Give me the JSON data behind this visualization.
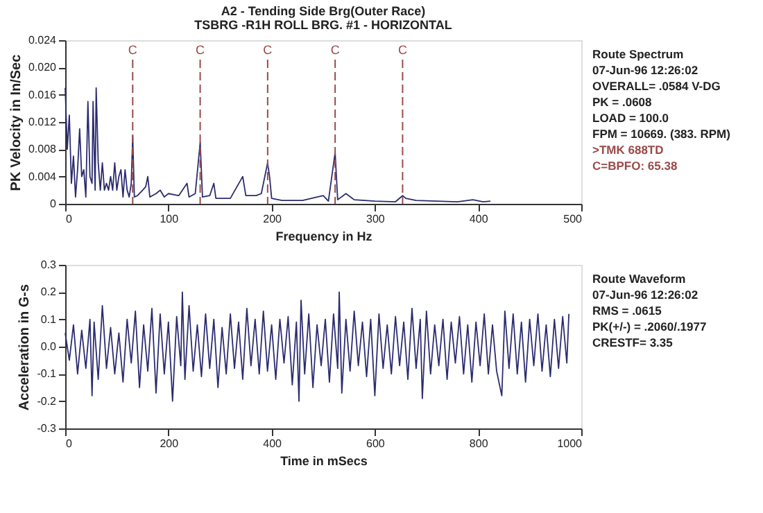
{
  "chart_data": [
    {
      "type": "line",
      "title": "A2  - Tending Side Brg(Outer Race)",
      "subtitle": "TSBRG     -R1H   ROLL BRG. #1 - HORIZONTAL",
      "xlabel": "Frequency in Hz",
      "ylabel": "PK Velocity in In/Sec",
      "xlim": [
        0,
        500
      ],
      "xticks": [
        0,
        100,
        200,
        300,
        400,
        500
      ],
      "ylim": [
        0,
        0.024
      ],
      "yticks": [
        0,
        0.004,
        0.008,
        0.012,
        0.016,
        {
          "value": 0.02,
          "label": "0.020"
        },
        0.024
      ],
      "grid": false,
      "x": [
        0,
        2,
        4,
        6,
        8,
        10,
        12,
        14,
        16,
        18,
        20,
        22,
        24,
        26,
        27,
        29,
        30,
        32,
        34,
        36,
        38,
        40,
        42,
        44,
        46,
        48,
        50,
        52,
        54,
        56,
        58,
        60,
        62,
        64,
        65.4,
        67,
        70,
        75,
        78,
        80,
        82,
        88,
        92,
        96,
        100,
        110,
        118,
        120,
        126,
        130.8,
        133,
        140,
        144,
        146,
        160,
        172,
        175,
        185,
        190,
        196.1,
        198,
        200,
        210,
        230,
        250,
        255,
        261.5,
        264,
        272,
        280,
        300,
        320,
        326.9,
        330,
        340,
        360,
        380,
        395,
        405,
        412
      ],
      "series": [
        {
          "color": "#2b2b70",
          "values": [
            0.017,
            0.008,
            0.013,
            0.003,
            0.007,
            0.001,
            0.005,
            0.011,
            0.004,
            0.005,
            0.001,
            0.015,
            0.004,
            0.003,
            0.015,
            0.002,
            0.017,
            0.006,
            0.002,
            0.006,
            0.002,
            0.003,
            0.002,
            0.004,
            0.002,
            0.006,
            0.002,
            0.004,
            0.005,
            0.001,
            0.005,
            0.002,
            0.001,
            0.003,
            0.01,
            0.001,
            0.0012,
            0.002,
            0.0025,
            0.004,
            0.001,
            0.0015,
            0.002,
            0.001,
            0.0015,
            0.0012,
            0.003,
            0.001,
            0.0015,
            0.009,
            0.001,
            0.0012,
            0.003,
            0.0008,
            0.0008,
            0.004,
            0.0012,
            0.0012,
            0.0015,
            0.006,
            0.004,
            0.0008,
            0.0005,
            0.0005,
            0.0012,
            0.0004,
            0.0075,
            0.0006,
            0.0015,
            0.0006,
            0.0004,
            0.0003,
            0.0012,
            0.0008,
            0.0005,
            0.0004,
            0.0003,
            0.0006,
            0.0003,
            0.0004
          ]
        }
      ],
      "ref_lines": [
        {
          "axis": "x",
          "value": 65.38,
          "label": "C",
          "color": "#9a4a4a",
          "line_style": "dashed"
        },
        {
          "axis": "x",
          "value": 130.76,
          "label": "C",
          "color": "#9a4a4a",
          "line_style": "dashed"
        },
        {
          "axis": "x",
          "value": 196.14,
          "label": "C",
          "color": "#9a4a4a",
          "line_style": "dashed"
        },
        {
          "axis": "x",
          "value": 261.52,
          "label": "C",
          "color": "#9a4a4a",
          "line_style": "dashed"
        },
        {
          "axis": "x",
          "value": 326.9,
          "label": "C",
          "color": "#9a4a4a",
          "line_style": "dashed"
        }
      ],
      "annotations": [
        "Route Spectrum",
        " 07-Jun-96  12:26:02",
        "OVERALL= .0584 V-DG",
        " PK  =  .0608",
        " LOAD = 100.0",
        " FPM = 10669. (383. RPM)",
        ">TMK 688TD",
        "C=BPFO: 65.38"
      ]
    },
    {
      "type": "line",
      "xlabel": "Time in mSecs",
      "ylabel": "Acceleration in G-s",
      "xlim": [
        0,
        1000
      ],
      "xticks": [
        0,
        200,
        400,
        600,
        800,
        {
          "value": 1000,
          "label": "1000"
        }
      ],
      "ylim": [
        -0.3,
        0.3
      ],
      "yticks": [
        {
          "value": -0.3,
          "label": "-0.3"
        },
        {
          "value": -0.2,
          "label": "-0.2"
        },
        {
          "value": -0.1,
          "label": "-0.1"
        },
        {
          "value": 0,
          "label": "0.0"
        },
        {
          "value": 0.1,
          "label": "0.1"
        },
        {
          "value": 0.2,
          "label": "0.2"
        },
        {
          "value": 0.3,
          "label": "0.3"
        }
      ],
      "grid": false,
      "x": [
        0,
        8,
        16,
        24,
        32,
        40,
        48,
        52,
        56,
        64,
        72,
        80,
        88,
        96,
        104,
        112,
        120,
        128,
        136,
        144,
        152,
        160,
        168,
        176,
        184,
        192,
        200,
        208,
        216,
        224,
        227,
        232,
        240,
        248,
        256,
        264,
        272,
        280,
        288,
        296,
        304,
        312,
        320,
        328,
        336,
        344,
        352,
        360,
        368,
        376,
        384,
        392,
        400,
        408,
        416,
        424,
        432,
        440,
        448,
        453,
        457,
        464,
        472,
        480,
        488,
        496,
        504,
        512,
        520,
        528,
        531,
        536,
        544,
        552,
        560,
        568,
        576,
        584,
        592,
        600,
        608,
        616,
        624,
        632,
        640,
        648,
        656,
        664,
        672,
        680,
        688,
        692,
        700,
        708,
        716,
        724,
        732,
        740,
        748,
        756,
        764,
        772,
        780,
        788,
        796,
        804,
        812,
        820,
        828,
        836,
        846,
        852,
        860,
        868,
        876,
        884,
        892,
        900,
        908,
        916,
        924,
        932,
        940,
        948,
        956,
        964,
        972,
        976
      ],
      "series": [
        {
          "color": "#2b2b70",
          "values": [
            0.05,
            -0.05,
            0.08,
            -0.1,
            0.06,
            -0.08,
            0.1,
            -0.18,
            0.09,
            -0.12,
            0.15,
            -0.08,
            0.07,
            -0.1,
            0.05,
            -0.13,
            0.1,
            -0.06,
            0.13,
            -0.15,
            0.08,
            -0.09,
            0.14,
            -0.17,
            0.12,
            -0.1,
            0.09,
            -0.2,
            0.11,
            -0.07,
            0.2,
            -0.12,
            0.15,
            -0.09,
            0.08,
            -0.11,
            0.12,
            -0.08,
            0.1,
            -0.15,
            0.07,
            -0.1,
            0.12,
            -0.08,
            0.09,
            -0.12,
            0.14,
            -0.07,
            0.1,
            -0.1,
            0.13,
            -0.09,
            0.08,
            -0.12,
            0.1,
            -0.06,
            0.11,
            -0.14,
            0.09,
            -0.2,
            0.17,
            -0.1,
            0.12,
            -0.15,
            0.08,
            -0.07,
            0.1,
            -0.13,
            0.12,
            -0.08,
            0.2,
            -0.17,
            0.1,
            -0.09,
            0.13,
            -0.07,
            0.09,
            -0.11,
            0.1,
            -0.18,
            0.12,
            -0.08,
            0.08,
            -0.1,
            0.11,
            -0.07,
            0.09,
            -0.12,
            0.14,
            -0.08,
            0.1,
            -0.19,
            0.13,
            -0.1,
            0.08,
            -0.07,
            0.1,
            -0.12,
            0.09,
            -0.06,
            0.11,
            -0.1,
            0.08,
            -0.13,
            0.09,
            -0.07,
            0.12,
            -0.1,
            0.08,
            -0.09,
            -0.18,
            0.13,
            -0.08,
            0.12,
            -0.1,
            0.09,
            -0.13,
            0.1,
            -0.07,
            0.12,
            -0.09,
            0.08,
            -0.11,
            0.1,
            -0.08,
            0.11,
            -0.06,
            0.12
          ]
        }
      ],
      "annotations": [
        "Route Waveform",
        " 07-Jun-96  12:26:02",
        " RMS =  .0615",
        " PK(+/-) = .2060/.1977",
        " CRESTF= 3.35"
      ]
    }
  ]
}
